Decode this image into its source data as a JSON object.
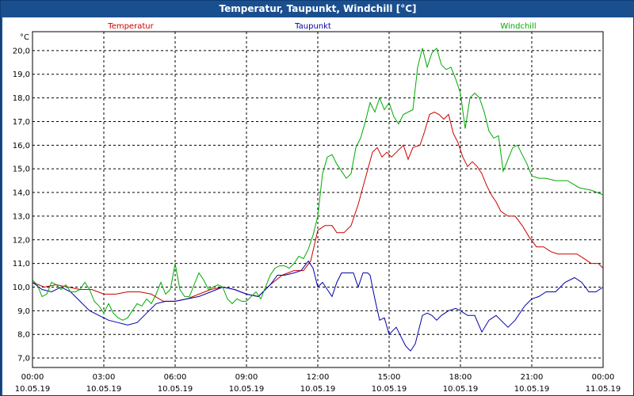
{
  "window": {
    "title": "Temperatur, Taupunkt, Windchill [°C]"
  },
  "chart_data": {
    "type": "line",
    "title": "Temperatur, Taupunkt, Windchill [°C]",
    "ylabel": "°C",
    "ylim": [
      6.6,
      20.8
    ],
    "yticks": [
      "7,0",
      "8,0",
      "9,0",
      "10,0",
      "11,0",
      "12,0",
      "13,0",
      "14,0",
      "15,0",
      "16,0",
      "17,0",
      "18,0",
      "19,0",
      "20,0"
    ],
    "ytick_values": [
      7,
      8,
      9,
      10,
      11,
      12,
      13,
      14,
      15,
      16,
      17,
      18,
      19,
      20
    ],
    "xlim": [
      0,
      24
    ],
    "xticks": [
      {
        "hour": 0,
        "time": "00:00",
        "date": "10.05.19"
      },
      {
        "hour": 3,
        "time": "03:00",
        "date": "10.05.19"
      },
      {
        "hour": 6,
        "time": "06:00",
        "date": "10.05.19"
      },
      {
        "hour": 9,
        "time": "09:00",
        "date": "10.05.19"
      },
      {
        "hour": 12,
        "time": "12:00",
        "date": "10.05.19"
      },
      {
        "hour": 15,
        "time": "15:00",
        "date": "10.05.19"
      },
      {
        "hour": 18,
        "time": "18:00",
        "date": "10.05.19"
      },
      {
        "hour": 21,
        "time": "21:00",
        "date": "10.05.19"
      },
      {
        "hour": 24,
        "time": "00:00",
        "date": "11.05.19"
      }
    ],
    "grid": true,
    "legend_position": "top",
    "series": [
      {
        "name": "Temperatur",
        "color": "#cc0000",
        "points": [
          [
            0,
            10.2
          ],
          [
            0.5,
            10.0
          ],
          [
            1,
            10.1
          ],
          [
            1.5,
            10.0
          ],
          [
            2,
            9.9
          ],
          [
            2.5,
            9.9
          ],
          [
            3,
            9.7
          ],
          [
            3.5,
            9.7
          ],
          [
            4,
            9.8
          ],
          [
            4.5,
            9.8
          ],
          [
            5,
            9.7
          ],
          [
            5.5,
            9.4
          ],
          [
            6,
            9.4
          ],
          [
            6.5,
            9.5
          ],
          [
            7,
            9.7
          ],
          [
            7.5,
            9.9
          ],
          [
            8,
            10.0
          ],
          [
            8.5,
            9.9
          ],
          [
            9,
            9.7
          ],
          [
            9.5,
            9.6
          ],
          [
            10,
            10.1
          ],
          [
            10.5,
            10.5
          ],
          [
            11,
            10.7
          ],
          [
            11.4,
            10.7
          ],
          [
            11.7,
            11.1
          ],
          [
            12,
            12.4
          ],
          [
            12.3,
            12.6
          ],
          [
            12.6,
            12.6
          ],
          [
            12.8,
            12.3
          ],
          [
            13.1,
            12.3
          ],
          [
            13.4,
            12.6
          ],
          [
            13.7,
            13.5
          ],
          [
            14.0,
            14.6
          ],
          [
            14.3,
            15.7
          ],
          [
            14.5,
            15.9
          ],
          [
            14.7,
            15.5
          ],
          [
            14.9,
            15.7
          ],
          [
            15.1,
            15.5
          ],
          [
            15.3,
            15.7
          ],
          [
            15.6,
            16.0
          ],
          [
            15.8,
            15.4
          ],
          [
            16.0,
            15.9
          ],
          [
            16.3,
            16.0
          ],
          [
            16.5,
            16.6
          ],
          [
            16.7,
            17.3
          ],
          [
            16.9,
            17.4
          ],
          [
            17.1,
            17.3
          ],
          [
            17.3,
            17.1
          ],
          [
            17.5,
            17.3
          ],
          [
            17.7,
            16.5
          ],
          [
            17.9,
            16.1
          ],
          [
            18.1,
            15.5
          ],
          [
            18.3,
            15.1
          ],
          [
            18.5,
            15.3
          ],
          [
            18.7,
            15.1
          ],
          [
            18.9,
            14.8
          ],
          [
            19.1,
            14.3
          ],
          [
            19.3,
            13.9
          ],
          [
            19.5,
            13.6
          ],
          [
            19.7,
            13.2
          ],
          [
            20,
            13.0
          ],
          [
            20.3,
            13.0
          ],
          [
            20.6,
            12.6
          ],
          [
            20.9,
            12.1
          ],
          [
            21.2,
            11.7
          ],
          [
            21.5,
            11.7
          ],
          [
            21.8,
            11.5
          ],
          [
            22.1,
            11.4
          ],
          [
            22.5,
            11.4
          ],
          [
            22.9,
            11.4
          ],
          [
            23.2,
            11.2
          ],
          [
            23.5,
            11.0
          ],
          [
            23.8,
            11.0
          ],
          [
            24,
            10.8
          ]
        ]
      },
      {
        "name": "Taupunkt",
        "color": "#0000aa",
        "points": [
          [
            0,
            10.2
          ],
          [
            0.4,
            9.9
          ],
          [
            0.8,
            9.8
          ],
          [
            1.2,
            10.0
          ],
          [
            1.6,
            9.8
          ],
          [
            2,
            9.4
          ],
          [
            2.4,
            9.0
          ],
          [
            2.8,
            8.8
          ],
          [
            3.2,
            8.6
          ],
          [
            3.6,
            8.5
          ],
          [
            4.0,
            8.4
          ],
          [
            4.4,
            8.5
          ],
          [
            4.8,
            8.9
          ],
          [
            5.2,
            9.3
          ],
          [
            5.6,
            9.4
          ],
          [
            6,
            9.4
          ],
          [
            6.5,
            9.5
          ],
          [
            7,
            9.6
          ],
          [
            7.5,
            9.8
          ],
          [
            8,
            10.0
          ],
          [
            8.5,
            9.9
          ],
          [
            9,
            9.7
          ],
          [
            9.5,
            9.6
          ],
          [
            9.8,
            9.9
          ],
          [
            10,
            10.1
          ],
          [
            10.3,
            10.5
          ],
          [
            10.6,
            10.5
          ],
          [
            11,
            10.6
          ],
          [
            11.3,
            10.7
          ],
          [
            11.6,
            11.1
          ],
          [
            11.8,
            10.8
          ],
          [
            12,
            10.0
          ],
          [
            12.2,
            10.2
          ],
          [
            12.4,
            9.9
          ],
          [
            12.6,
            9.6
          ],
          [
            12.8,
            10.2
          ],
          [
            13.0,
            10.6
          ],
          [
            13.2,
            10.6
          ],
          [
            13.5,
            10.6
          ],
          [
            13.7,
            10.0
          ],
          [
            13.9,
            10.6
          ],
          [
            14.1,
            10.6
          ],
          [
            14.2,
            10.5
          ],
          [
            14.4,
            9.5
          ],
          [
            14.6,
            8.6
          ],
          [
            14.8,
            8.7
          ],
          [
            15.0,
            8.0
          ],
          [
            15.3,
            8.3
          ],
          [
            15.5,
            7.9
          ],
          [
            15.7,
            7.5
          ],
          [
            15.9,
            7.3
          ],
          [
            16.1,
            7.6
          ],
          [
            16.4,
            8.8
          ],
          [
            16.6,
            8.9
          ],
          [
            16.8,
            8.8
          ],
          [
            17.0,
            8.6
          ],
          [
            17.2,
            8.8
          ],
          [
            17.5,
            9.0
          ],
          [
            17.8,
            9.1
          ],
          [
            18.0,
            9.0
          ],
          [
            18.3,
            8.8
          ],
          [
            18.6,
            8.8
          ],
          [
            18.9,
            8.1
          ],
          [
            19.2,
            8.6
          ],
          [
            19.5,
            8.8
          ],
          [
            19.8,
            8.5
          ],
          [
            20,
            8.3
          ],
          [
            20.3,
            8.6
          ],
          [
            20.7,
            9.2
          ],
          [
            21.0,
            9.5
          ],
          [
            21.3,
            9.6
          ],
          [
            21.6,
            9.8
          ],
          [
            22.0,
            9.8
          ],
          [
            22.4,
            10.2
          ],
          [
            22.8,
            10.4
          ],
          [
            23.1,
            10.2
          ],
          [
            23.4,
            9.8
          ],
          [
            23.7,
            9.8
          ],
          [
            24,
            10.0
          ]
        ]
      },
      {
        "name": "Windchill",
        "color": "#00aa00",
        "points": [
          [
            0,
            10.3
          ],
          [
            0.2,
            10.1
          ],
          [
            0.4,
            9.6
          ],
          [
            0.6,
            9.7
          ],
          [
            0.8,
            10.2
          ],
          [
            1.0,
            10.1
          ],
          [
            1.2,
            9.9
          ],
          [
            1.4,
            10.1
          ],
          [
            1.6,
            9.8
          ],
          [
            1.8,
            9.8
          ],
          [
            2.0,
            9.9
          ],
          [
            2.2,
            10.2
          ],
          [
            2.4,
            9.9
          ],
          [
            2.6,
            9.4
          ],
          [
            2.8,
            9.2
          ],
          [
            3.0,
            8.9
          ],
          [
            3.2,
            9.3
          ],
          [
            3.4,
            8.9
          ],
          [
            3.6,
            8.7
          ],
          [
            3.8,
            8.6
          ],
          [
            4.0,
            8.7
          ],
          [
            4.2,
            9.0
          ],
          [
            4.4,
            9.3
          ],
          [
            4.6,
            9.2
          ],
          [
            4.8,
            9.5
          ],
          [
            5.0,
            9.3
          ],
          [
            5.2,
            9.7
          ],
          [
            5.4,
            10.2
          ],
          [
            5.6,
            9.7
          ],
          [
            5.8,
            9.9
          ],
          [
            6.0,
            11.0
          ],
          [
            6.2,
            9.9
          ],
          [
            6.4,
            9.6
          ],
          [
            6.6,
            9.6
          ],
          [
            6.8,
            10.1
          ],
          [
            7.0,
            10.6
          ],
          [
            7.2,
            10.3
          ],
          [
            7.4,
            9.9
          ],
          [
            7.6,
            10.0
          ],
          [
            7.8,
            10.1
          ],
          [
            8.0,
            10.0
          ],
          [
            8.2,
            9.5
          ],
          [
            8.4,
            9.3
          ],
          [
            8.6,
            9.5
          ],
          [
            8.8,
            9.4
          ],
          [
            9.0,
            9.4
          ],
          [
            9.2,
            9.6
          ],
          [
            9.4,
            9.8
          ],
          [
            9.6,
            9.5
          ],
          [
            9.8,
            10.0
          ],
          [
            10.0,
            10.5
          ],
          [
            10.2,
            10.8
          ],
          [
            10.4,
            10.9
          ],
          [
            10.6,
            10.9
          ],
          [
            10.8,
            10.8
          ],
          [
            11.0,
            11.0
          ],
          [
            11.2,
            11.3
          ],
          [
            11.4,
            11.2
          ],
          [
            11.6,
            11.6
          ],
          [
            11.8,
            12.2
          ],
          [
            12.0,
            13.0
          ],
          [
            12.2,
            14.8
          ],
          [
            12.4,
            15.5
          ],
          [
            12.6,
            15.6
          ],
          [
            12.8,
            15.2
          ],
          [
            13.0,
            14.9
          ],
          [
            13.2,
            14.6
          ],
          [
            13.4,
            14.8
          ],
          [
            13.6,
            15.9
          ],
          [
            13.8,
            16.3
          ],
          [
            14.0,
            17.0
          ],
          [
            14.2,
            17.8
          ],
          [
            14.4,
            17.4
          ],
          [
            14.6,
            18.0
          ],
          [
            14.8,
            17.5
          ],
          [
            15.0,
            17.8
          ],
          [
            15.2,
            17.2
          ],
          [
            15.4,
            16.9
          ],
          [
            15.6,
            17.3
          ],
          [
            15.8,
            17.4
          ],
          [
            16.0,
            17.5
          ],
          [
            16.2,
            19.3
          ],
          [
            16.4,
            20.1
          ],
          [
            16.6,
            19.3
          ],
          [
            16.8,
            19.9
          ],
          [
            17.0,
            20.1
          ],
          [
            17.2,
            19.4
          ],
          [
            17.4,
            19.2
          ],
          [
            17.6,
            19.3
          ],
          [
            17.8,
            18.8
          ],
          [
            18.0,
            18.2
          ],
          [
            18.2,
            16.7
          ],
          [
            18.4,
            18.0
          ],
          [
            18.6,
            18.2
          ],
          [
            18.8,
            18.0
          ],
          [
            19.0,
            17.4
          ],
          [
            19.2,
            16.6
          ],
          [
            19.4,
            16.3
          ],
          [
            19.6,
            16.4
          ],
          [
            19.8,
            14.9
          ],
          [
            20.0,
            15.4
          ],
          [
            20.2,
            15.9
          ],
          [
            20.4,
            16.0
          ],
          [
            20.6,
            15.6
          ],
          [
            20.8,
            15.2
          ],
          [
            21.0,
            14.7
          ],
          [
            21.3,
            14.6
          ],
          [
            21.6,
            14.6
          ],
          [
            22.0,
            14.5
          ],
          [
            22.5,
            14.5
          ],
          [
            23.0,
            14.2
          ],
          [
            23.5,
            14.1
          ],
          [
            24,
            13.9
          ]
        ]
      }
    ]
  }
}
